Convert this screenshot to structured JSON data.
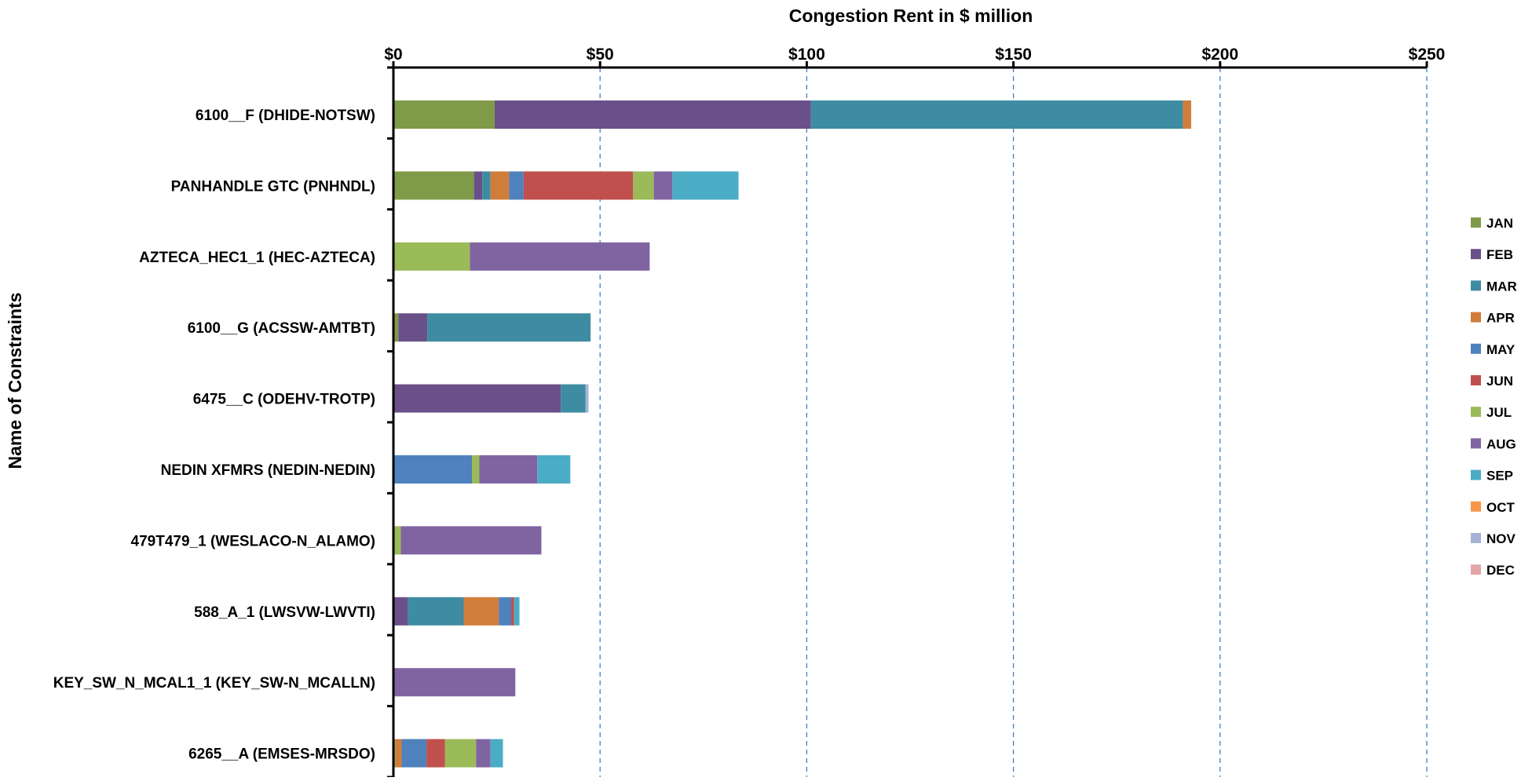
{
  "chart_data": {
    "type": "bar",
    "orientation": "horizontal",
    "stacked": true,
    "title": "Congestion Rent in $ million",
    "xlabel": "Congestion Rent in $ million",
    "ylabel": "Name of Constraints",
    "xlim": [
      0,
      250
    ],
    "x_ticks": [
      "$0",
      "$50",
      "$100",
      "$150",
      "$200",
      "$250"
    ],
    "x_tick_values": [
      0,
      50,
      100,
      150,
      200,
      250
    ],
    "x_axis_position": "top",
    "grid": "vertical dashed",
    "legend_position": "right",
    "categories": [
      "6100__F (DHIDE-NOTSW)",
      "PANHANDLE GTC (PNHNDL)",
      "AZTECA_HEC1_1 (HEC-AZTECA)",
      "6100__G (ACSSW-AMTBT)",
      "6475__C (ODEHV-TROTP)",
      "NEDIN XFMRS (NEDIN-NEDIN)",
      "479T479_1 (WESLACO-N_ALAMO)",
      "588_A_1 (LWSVW-LWVTI)",
      "KEY_SW_N_MCAL1_1 (KEY_SW-N_MCALLN)",
      "6265__A (EMSES-MRSDO)"
    ],
    "series": [
      {
        "name": "JAN",
        "color": "#7f9a48",
        "values": [
          24.5,
          19.5,
          0,
          1.2,
          0,
          0,
          0,
          0,
          0,
          0.5
        ]
      },
      {
        "name": "FEB",
        "color": "#6a5088",
        "values": [
          76.5,
          2,
          0,
          7,
          40.5,
          0,
          0,
          3.5,
          0,
          0
        ]
      },
      {
        "name": "MAR",
        "color": "#3e8ca2",
        "values": [
          90,
          2,
          0,
          39.5,
          6,
          0,
          0,
          13.5,
          0,
          0
        ]
      },
      {
        "name": "APR",
        "color": "#d17d3a",
        "values": [
          2,
          4.5,
          0,
          0,
          0,
          0,
          0,
          8.5,
          0,
          1.5
        ]
      },
      {
        "name": "MAY",
        "color": "#4f81bd",
        "values": [
          0,
          3.5,
          0,
          0,
          0,
          19,
          0,
          3,
          0,
          6
        ]
      },
      {
        "name": "JUN",
        "color": "#c0504d",
        "values": [
          0,
          26.5,
          0,
          0,
          0,
          0,
          0,
          0.7,
          0,
          4.5
        ]
      },
      {
        "name": "JUL",
        "color": "#9bbb59",
        "values": [
          0,
          5,
          18.5,
          0,
          0,
          1.8,
          1.8,
          0,
          0,
          7.5
        ]
      },
      {
        "name": "AUG",
        "color": "#8064a2",
        "values": [
          0,
          4.5,
          43.5,
          0,
          0,
          14,
          34,
          0,
          29.5,
          3.5
        ]
      },
      {
        "name": "SEP",
        "color": "#4bacc6",
        "values": [
          0,
          16,
          0,
          0,
          0,
          8,
          0,
          1.3,
          0,
          3
        ]
      },
      {
        "name": "OCT",
        "color": "#f79646",
        "values": [
          0,
          0,
          0,
          0,
          0,
          0,
          0,
          0,
          0,
          0
        ]
      },
      {
        "name": "NOV",
        "color": "#a5b4d6",
        "values": [
          0,
          0,
          0,
          0,
          0.7,
          0,
          0,
          0,
          0,
          0
        ]
      },
      {
        "name": "DEC",
        "color": "#e3a5a7",
        "values": [
          0,
          0,
          0,
          0,
          0,
          0,
          0,
          0,
          0,
          0
        ]
      }
    ]
  }
}
